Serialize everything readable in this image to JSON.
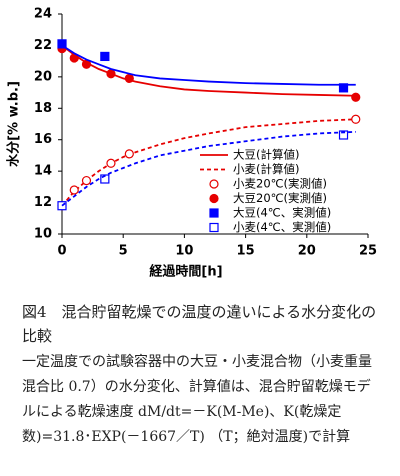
{
  "chart_data": {
    "type": "line",
    "xlabel": "経過時間[h]",
    "ylabel": "水分[% w.b.]",
    "xlim": [
      0,
      25
    ],
    "xticks": [
      0,
      5,
      10,
      15,
      20,
      25
    ],
    "ylim": [
      10,
      24
    ],
    "yticks": [
      10,
      12,
      14,
      16,
      18,
      20,
      22,
      24
    ],
    "legend": "lower right",
    "series": [
      {
        "name": "大豆(計算値)",
        "color": "#e60000",
        "line": "solid",
        "x": [
          0,
          1,
          2,
          3,
          4,
          5,
          6,
          8,
          10,
          12,
          15,
          18,
          21,
          24
        ],
        "values": [
          22,
          21.4,
          20.9,
          20.5,
          20.2,
          19.9,
          19.7,
          19.4,
          19.2,
          19.1,
          19.0,
          18.9,
          18.85,
          18.8
        ]
      },
      {
        "name": "小麦(計算値)",
        "color": "#e60000",
        "line": "dashed",
        "x": [
          0,
          1,
          2,
          3,
          4,
          5,
          6,
          8,
          10,
          12,
          15,
          18,
          21,
          24
        ],
        "values": [
          11.8,
          12.7,
          13.4,
          14.0,
          14.5,
          14.9,
          15.2,
          15.7,
          16.1,
          16.4,
          16.8,
          17.0,
          17.2,
          17.3
        ]
      },
      {
        "name": "小麦20℃(実測値)",
        "color": "#e60000",
        "marker": "circle",
        "filled": false,
        "x": [
          0,
          1,
          2,
          4,
          5.5,
          24
        ],
        "values": [
          11.8,
          12.8,
          13.4,
          14.5,
          15.1,
          17.3
        ]
      },
      {
        "name": "大豆20℃(実測値)",
        "color": "#e60000",
        "marker": "circle",
        "filled": true,
        "x": [
          0,
          1,
          2,
          4,
          5.5,
          24
        ],
        "values": [
          21.8,
          21.2,
          20.8,
          20.2,
          19.9,
          18.7
        ]
      },
      {
        "name": "大豆(4℃、実測値)",
        "color": "#0000ff",
        "marker": "square",
        "filled": true,
        "x": [
          0,
          3.5,
          23
        ],
        "values": [
          22.1,
          21.3,
          19.3
        ]
      },
      {
        "name": "小麦(4℃、実測値)",
        "color": "#0000ff",
        "marker": "square",
        "filled": false,
        "x": [
          0,
          3.5,
          23
        ],
        "values": [
          11.8,
          13.5,
          16.3
        ]
      },
      {
        "color": "#0000ff",
        "line": "solid",
        "x": [
          0,
          1,
          2,
          3,
          4,
          5,
          6,
          8,
          10,
          12,
          15,
          18,
          21,
          24
        ],
        "values": [
          22,
          21.5,
          21.1,
          20.8,
          20.5,
          20.3,
          20.1,
          19.9,
          19.8,
          19.7,
          19.6,
          19.55,
          19.5,
          19.5
        ]
      },
      {
        "color": "#0000ff",
        "line": "dashed",
        "x": [
          0,
          1,
          2,
          3,
          4,
          5,
          6,
          8,
          10,
          12,
          15,
          18,
          21,
          24
        ],
        "values": [
          11.8,
          12.4,
          13.0,
          13.5,
          13.9,
          14.2,
          14.5,
          15.0,
          15.3,
          15.6,
          15.9,
          16.2,
          16.4,
          16.5
        ]
      }
    ]
  },
  "caption": {
    "title": "図4　混合貯留乾燥での温度の違いによる水分変化の比較",
    "body": "一定温度での試験容器中の大豆・小麦混合物（小麦重量混合比 0.7）の水分変化、計算値は、混合貯留乾燥モデルによる乾燥速度 dM/dt=－K(M-Me)、K(乾燥定数)=31.8･EXP(－1667／T) （T；絶対温度)で計算"
  }
}
